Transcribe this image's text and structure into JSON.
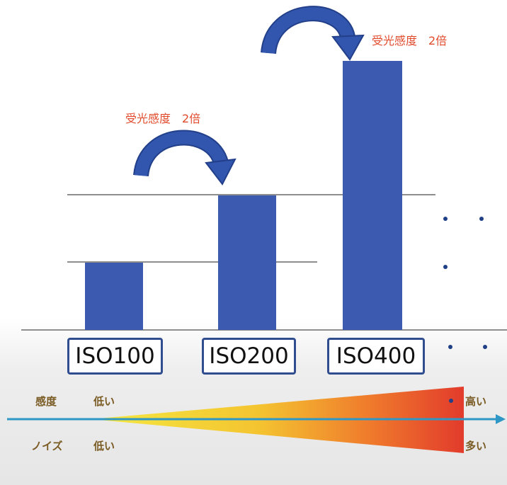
{
  "colors": {
    "bar": "#3c5bb0",
    "arrow": "#3256ad",
    "annotation": "#e24a2c",
    "label": "#7a5b23",
    "axis_arrow": "#2f97c6",
    "gradient": [
      "#f2e63a",
      "#f3a12c",
      "#e43f2d"
    ]
  },
  "annotations": {
    "first": "受光感度　2倍",
    "second": "受光感度　2倍"
  },
  "iso": {
    "labels": [
      "ISO100",
      "ISO200",
      "ISO400"
    ]
  },
  "ellipsis": "・・",
  "scale": {
    "sensitivity": {
      "label": "感度",
      "low": "低い",
      "high": "高い"
    },
    "noise": {
      "label": "ノイズ",
      "low": "低い",
      "high": "多い"
    }
  }
}
